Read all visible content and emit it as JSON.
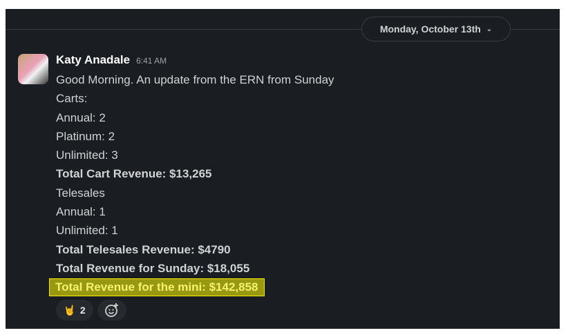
{
  "date_divider": {
    "label": "Monday, October 13th"
  },
  "message": {
    "author": "Katy Anadale",
    "time": "6:41 AM",
    "lines": [
      {
        "text": "Good Morning. An update from the ERN from Sunday",
        "bold": false
      },
      {
        "text": "Carts:",
        "bold": false
      },
      {
        "text": "Annual: 2",
        "bold": false
      },
      {
        "text": "Platinum: 2",
        "bold": false
      },
      {
        "text": "Unlimited: 3",
        "bold": false
      },
      {
        "text": "Total Cart Revenue: $13,265",
        "bold": true
      },
      {
        "text": "Telesales",
        "bold": false
      },
      {
        "text": "Annual: 1",
        "bold": false
      },
      {
        "text": "Unlimited: 1",
        "bold": false
      },
      {
        "text": "Total Telesales Revenue: $4790",
        "bold": true
      },
      {
        "text": "Total Revenue for Sunday: $18,055",
        "bold": true
      },
      {
        "text": "Total Revenue for the mini: $142,858",
        "bold": true,
        "highlighted": true
      }
    ],
    "reactions": [
      {
        "icon": "rock-on-hand-emoji",
        "emoji": "🤘",
        "count": "2"
      }
    ],
    "add_reaction_icon": "add-emoji-icon"
  },
  "colors": {
    "background": "#1a1d21",
    "highlight": "#9a9810",
    "highlight_border": "#f2ee00"
  }
}
